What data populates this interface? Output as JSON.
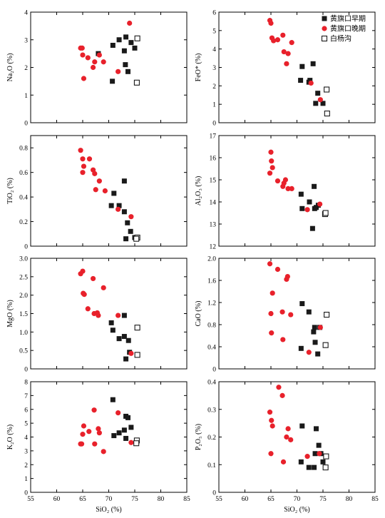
{
  "legend": {
    "items": [
      {
        "label": "黄旗口早期",
        "marker": "filled-square",
        "color": "#1a1a1a"
      },
      {
        "label": "黄旗口晚期",
        "marker": "filled-circle",
        "color": "#e8212b"
      },
      {
        "label": "白杨沟",
        "marker": "open-square",
        "color": "#1a1a1a"
      }
    ]
  },
  "colors": {
    "early": "#1a1a1a",
    "late": "#e8212b",
    "byg": "#1a1a1a"
  },
  "shared_x": {
    "label": "SiO₂ (%)",
    "ticks": [
      55,
      60,
      65,
      70,
      75,
      80,
      85
    ],
    "xlim": [
      55,
      85
    ]
  },
  "chart_data": [
    {
      "type": "scatter",
      "panel": "na2o",
      "xlabel": "",
      "ylabel": "Na₂O (%)",
      "xlim": [
        55,
        85
      ],
      "ylim": [
        0,
        4
      ],
      "yticks": [
        0,
        1,
        2,
        3,
        4
      ],
      "ytick_labels": [
        "0",
        "1",
        "2",
        "3",
        "4"
      ],
      "series": [
        {
          "name": "黄旗口早期",
          "points": [
            [
              68.0,
              2.5
            ],
            [
              70.7,
              1.5
            ],
            [
              70.8,
              2.8
            ],
            [
              72.0,
              3.0
            ],
            [
              73.3,
              3.1
            ],
            [
              73.0,
              2.6
            ],
            [
              73.2,
              2.1
            ],
            [
              73.7,
              1.85
            ],
            [
              74.3,
              2.9
            ],
            [
              75.0,
              2.7
            ]
          ]
        },
        {
          "name": "黄旗口晚期",
          "points": [
            [
              64.6,
              2.7
            ],
            [
              64.9,
              2.7
            ],
            [
              65.0,
              2.45
            ],
            [
              65.2,
              1.6
            ],
            [
              66.0,
              2.35
            ],
            [
              67.0,
              2.0
            ],
            [
              67.3,
              2.2
            ],
            [
              68.2,
              2.45
            ],
            [
              69.0,
              2.2
            ],
            [
              71.8,
              1.85
            ],
            [
              74.0,
              3.6
            ]
          ]
        },
        {
          "name": "白杨沟",
          "points": [
            [
              75.5,
              3.05
            ],
            [
              75.4,
              1.45
            ]
          ]
        }
      ]
    },
    {
      "type": "scatter",
      "panel": "feo",
      "xlabel": "",
      "ylabel": "FeO* (%)",
      "xlim": [
        55,
        85
      ],
      "ylim": [
        0,
        6
      ],
      "yticks": [
        0,
        1,
        2,
        3,
        4,
        5,
        6
      ],
      "ytick_labels": [
        "0",
        "1",
        "2",
        "3",
        "4",
        "5",
        "6"
      ],
      "series": [
        {
          "name": "黄旗口早期",
          "points": [
            [
              70.7,
              2.3
            ],
            [
              71.0,
              3.05
            ],
            [
              72.3,
              2.2
            ],
            [
              72.5,
              2.3
            ],
            [
              73.1,
              3.2
            ],
            [
              73.6,
              1.05
            ],
            [
              74.0,
              1.6
            ],
            [
              75.0,
              1.05
            ]
          ]
        },
        {
          "name": "黄旗口晚期",
          "points": [
            [
              64.8,
              5.55
            ],
            [
              65.0,
              5.4
            ],
            [
              65.2,
              4.6
            ],
            [
              65.5,
              4.45
            ],
            [
              66.3,
              4.5
            ],
            [
              67.3,
              4.75
            ],
            [
              67.5,
              3.85
            ],
            [
              68.3,
              3.75
            ],
            [
              69.0,
              4.35
            ],
            [
              68.0,
              3.2
            ],
            [
              72.7,
              2.15
            ],
            [
              74.5,
              1.25
            ]
          ]
        },
        {
          "name": "白杨沟",
          "points": [
            [
              75.7,
              1.8
            ],
            [
              75.8,
              0.5
            ]
          ]
        }
      ]
    },
    {
      "type": "scatter",
      "panel": "tio2",
      "xlabel": "",
      "ylabel": "TiO₂ (%)",
      "xlim": [
        55,
        85
      ],
      "ylim": [
        0,
        0.9
      ],
      "yticks": [
        0,
        0.2,
        0.4,
        0.6,
        0.8
      ],
      "ytick_labels": [
        "0",
        "0.2",
        "0.4",
        "0.6",
        "0.8"
      ],
      "series": [
        {
          "name": "黄旗口早期",
          "points": [
            [
              70.5,
              0.33
            ],
            [
              71.0,
              0.43
            ],
            [
              72.0,
              0.33
            ],
            [
              73.0,
              0.53
            ],
            [
              73.0,
              0.28
            ],
            [
              73.3,
              0.06
            ],
            [
              73.6,
              0.19
            ],
            [
              74.2,
              0.12
            ],
            [
              75.0,
              0.07
            ]
          ]
        },
        {
          "name": "黄旗口晚期",
          "points": [
            [
              64.6,
              0.78
            ],
            [
              65.0,
              0.6
            ],
            [
              65.0,
              0.71
            ],
            [
              65.2,
              0.65
            ],
            [
              66.3,
              0.71
            ],
            [
              67.0,
              0.62
            ],
            [
              67.3,
              0.59
            ],
            [
              67.5,
              0.46
            ],
            [
              68.2,
              0.53
            ],
            [
              69.3,
              0.45
            ],
            [
              71.8,
              0.3
            ],
            [
              74.3,
              0.24
            ]
          ]
        },
        {
          "name": "白杨沟",
          "points": [
            [
              75.5,
              0.07
            ],
            [
              75.3,
              0.06
            ]
          ]
        }
      ]
    },
    {
      "type": "scatter",
      "panel": "al2o3",
      "xlabel": "",
      "ylabel": "Al₂O₃ (%)",
      "xlim": [
        55,
        85
      ],
      "ylim": [
        12,
        17
      ],
      "yticks": [
        12,
        13,
        14,
        15,
        16,
        17
      ],
      "ytick_labels": [
        "12",
        "13",
        "14",
        "15",
        "16",
        "17"
      ],
      "series": [
        {
          "name": "黄旗口早期",
          "points": [
            [
              70.8,
              14.35
            ],
            [
              71.0,
              13.7
            ],
            [
              72.4,
              14.0
            ],
            [
              73.0,
              12.8
            ],
            [
              73.3,
              14.7
            ],
            [
              73.4,
              13.7
            ],
            [
              73.7,
              13.75
            ],
            [
              74.1,
              13.85
            ]
          ]
        },
        {
          "name": "黄旗口晚期",
          "points": [
            [
              64.8,
              15.3
            ],
            [
              65.0,
              16.25
            ],
            [
              65.1,
              15.85
            ],
            [
              65.3,
              15.55
            ],
            [
              66.3,
              14.95
            ],
            [
              67.3,
              14.7
            ],
            [
              67.5,
              14.85
            ],
            [
              67.8,
              15.0
            ],
            [
              68.3,
              14.6
            ],
            [
              69.0,
              14.6
            ],
            [
              72.0,
              13.65
            ],
            [
              74.4,
              13.9
            ]
          ]
        },
        {
          "name": "白杨沟",
          "points": [
            [
              75.4,
              13.45
            ],
            [
              75.5,
              13.5
            ]
          ]
        }
      ]
    },
    {
      "type": "scatter",
      "panel": "mgo",
      "xlabel": "",
      "ylabel": "MgO (%)",
      "xlim": [
        55,
        85
      ],
      "ylim": [
        0,
        3
      ],
      "yticks": [
        0,
        0.5,
        1,
        1.5,
        2,
        2.5,
        3
      ],
      "ytick_labels": [
        "0",
        "0.5",
        "1.0",
        "1.5",
        "2.0",
        "2.5",
        "3.0"
      ],
      "series": [
        {
          "name": "黄旗口早期",
          "points": [
            [
              70.5,
              1.25
            ],
            [
              70.8,
              1.05
            ],
            [
              72.0,
              0.82
            ],
            [
              73.0,
              1.45
            ],
            [
              73.0,
              0.88
            ],
            [
              73.3,
              0.27
            ],
            [
              73.8,
              0.77
            ],
            [
              74.0,
              0.45
            ]
          ]
        },
        {
          "name": "黄旗口晚期",
          "points": [
            [
              64.6,
              2.58
            ],
            [
              65.0,
              2.65
            ],
            [
              65.1,
              2.05
            ],
            [
              65.3,
              2.02
            ],
            [
              66.0,
              1.63
            ],
            [
              67.0,
              2.45
            ],
            [
              67.2,
              1.5
            ],
            [
              67.8,
              1.52
            ],
            [
              68.0,
              1.45
            ],
            [
              69.0,
              2.2
            ],
            [
              71.8,
              1.45
            ],
            [
              74.3,
              0.42
            ]
          ]
        },
        {
          "name": "白杨沟",
          "points": [
            [
              75.5,
              1.12
            ],
            [
              75.5,
              0.38
            ]
          ]
        }
      ]
    },
    {
      "type": "scatter",
      "panel": "cao",
      "xlabel": "",
      "ylabel": "CaO (%)",
      "xlim": [
        55,
        85
      ],
      "ylim": [
        0,
        2
      ],
      "yticks": [
        0,
        0.4,
        0.8,
        1.2,
        1.6,
        2.0
      ],
      "ytick_labels": [
        "0",
        "0.4",
        "0.8",
        "1.2",
        "1.6",
        "2.0"
      ],
      "series": [
        {
          "name": "黄旗口早期",
          "points": [
            [
              70.8,
              0.37
            ],
            [
              71.0,
              1.18
            ],
            [
              72.3,
              1.03
            ],
            [
              73.2,
              0.67
            ],
            [
              73.4,
              0.75
            ],
            [
              73.5,
              0.48
            ],
            [
              74.0,
              0.27
            ],
            [
              74.4,
              0.75
            ]
          ]
        },
        {
          "name": "黄旗口晚期",
          "points": [
            [
              64.8,
              1.9
            ],
            [
              65.0,
              1.0
            ],
            [
              65.1,
              0.65
            ],
            [
              65.3,
              1.37
            ],
            [
              66.3,
              1.8
            ],
            [
              67.2,
              1.03
            ],
            [
              67.3,
              0.53
            ],
            [
              68.0,
              1.62
            ],
            [
              68.2,
              1.67
            ],
            [
              68.8,
              0.98
            ],
            [
              72.3,
              0.3
            ],
            [
              74.5,
              0.75
            ]
          ]
        },
        {
          "name": "白杨沟",
          "points": [
            [
              75.7,
              0.98
            ],
            [
              75.5,
              0.43
            ]
          ]
        }
      ]
    },
    {
      "type": "scatter",
      "panel": "k2o",
      "xlabel": "SiO₂ (%)",
      "ylabel": "K₂O (%)",
      "xlim": [
        55,
        85
      ],
      "ylim": [
        0,
        8
      ],
      "yticks": [
        0,
        1,
        2,
        3,
        4,
        5,
        6,
        7,
        8
      ],
      "ytick_labels": [
        "0",
        "1",
        "2",
        "3",
        "4",
        "5",
        "6",
        "7",
        "8"
      ],
      "series": [
        {
          "name": "黄旗口早期",
          "points": [
            [
              70.8,
              6.7
            ],
            [
              71.0,
              4.1
            ],
            [
              72.0,
              4.3
            ],
            [
              73.0,
              4.5
            ],
            [
              73.3,
              5.5
            ],
            [
              73.3,
              3.9
            ],
            [
              73.7,
              5.4
            ],
            [
              74.3,
              4.7
            ]
          ]
        },
        {
          "name": "黄旗口晚期",
          "points": [
            [
              64.6,
              3.5
            ],
            [
              64.8,
              3.5
            ],
            [
              65.0,
              4.2
            ],
            [
              65.2,
              4.8
            ],
            [
              66.2,
              4.4
            ],
            [
              67.2,
              5.95
            ],
            [
              67.3,
              3.5
            ],
            [
              68.0,
              4.6
            ],
            [
              68.2,
              4.3
            ],
            [
              69.0,
              2.95
            ],
            [
              71.8,
              5.75
            ],
            [
              74.3,
              3.6
            ]
          ]
        },
        {
          "name": "白杨沟",
          "points": [
            [
              75.4,
              3.75
            ],
            [
              75.3,
              3.55
            ]
          ]
        }
      ]
    },
    {
      "type": "scatter",
      "panel": "p2o5",
      "xlabel": "SiO₂ (%)",
      "ylabel": "P₂O₅ (%)",
      "xlim": [
        55,
        85
      ],
      "ylim": [
        0,
        0.4
      ],
      "yticks": [
        0,
        0.1,
        0.2,
        0.3,
        0.4
      ],
      "ytick_labels": [
        "0",
        "0.1",
        "0.2",
        "0.3",
        "0.4"
      ],
      "series": [
        {
          "name": "黄旗口早期",
          "points": [
            [
              70.8,
              0.11
            ],
            [
              71.0,
              0.24
            ],
            [
              72.3,
              0.09
            ],
            [
              73.3,
              0.09
            ],
            [
              73.5,
              0.14
            ],
            [
              73.7,
              0.23
            ],
            [
              74.2,
              0.17
            ],
            [
              74.6,
              0.14
            ],
            [
              75.0,
              0.11
            ]
          ]
        },
        {
          "name": "黄旗口晚期",
          "points": [
            [
              64.8,
              0.29
            ],
            [
              65.0,
              0.14
            ],
            [
              65.1,
              0.26
            ],
            [
              65.3,
              0.24
            ],
            [
              66.5,
              0.38
            ],
            [
              67.2,
              0.35
            ],
            [
              67.4,
              0.11
            ],
            [
              68.0,
              0.2
            ],
            [
              68.3,
              0.23
            ],
            [
              68.8,
              0.19
            ],
            [
              72.0,
              0.13
            ],
            [
              74.3,
              0.14
            ]
          ]
        },
        {
          "name": "白杨沟",
          "points": [
            [
              75.6,
              0.13
            ],
            [
              75.5,
              0.09
            ]
          ]
        }
      ]
    }
  ]
}
